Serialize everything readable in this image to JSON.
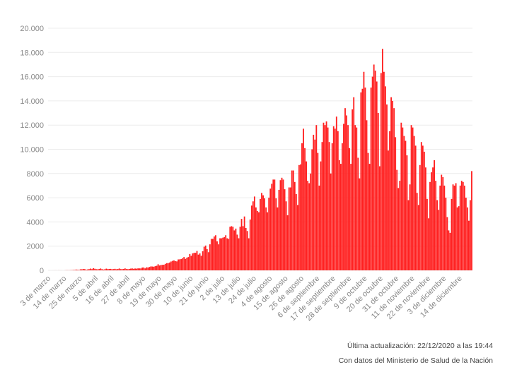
{
  "chart_data": {
    "type": "bar",
    "color": "#ff2020",
    "grid": true,
    "ylim": [
      0,
      20000
    ],
    "yticks": [
      0,
      2000,
      4000,
      6000,
      8000,
      {
        "value": 10000,
        "label": "10.000"
      },
      {
        "value": 12000,
        "label": "12.000"
      },
      {
        "value": 14000,
        "label": "14.000"
      },
      {
        "value": 16000,
        "label": "16.000"
      },
      {
        "value": 18000,
        "label": "18.000"
      },
      {
        "value": 20000,
        "label": "20.000"
      }
    ],
    "categories": [
      "3 de marzo",
      null,
      null,
      null,
      null,
      null,
      null,
      null,
      null,
      null,
      null,
      "14 de marzo",
      null,
      null,
      null,
      null,
      null,
      null,
      null,
      null,
      null,
      null,
      "25 de marzo",
      null,
      null,
      null,
      null,
      null,
      null,
      null,
      null,
      null,
      null,
      "5 de abril",
      null,
      null,
      null,
      null,
      null,
      null,
      null,
      null,
      null,
      null,
      "16 de abril",
      null,
      null,
      null,
      null,
      null,
      null,
      null,
      null,
      null,
      null,
      "27 de abril",
      null,
      null,
      null,
      null,
      null,
      null,
      null,
      null,
      null,
      null,
      "8 de mayo",
      null,
      null,
      null,
      null,
      null,
      null,
      null,
      null,
      null,
      null,
      "19 de mayo",
      null,
      null,
      null,
      null,
      null,
      null,
      null,
      null,
      null,
      null,
      "30 de mayo",
      null,
      null,
      null,
      null,
      null,
      null,
      null,
      null,
      null,
      null,
      "10 de junio",
      null,
      null,
      null,
      null,
      null,
      null,
      null,
      null,
      null,
      null,
      "21 de junio",
      null,
      null,
      null,
      null,
      null,
      null,
      null,
      null,
      null,
      null,
      "2 de julio",
      null,
      null,
      null,
      null,
      null,
      null,
      null,
      null,
      null,
      null,
      "13 de julio",
      null,
      null,
      null,
      null,
      null,
      null,
      null,
      null,
      null,
      null,
      "24 de julio",
      null,
      null,
      null,
      null,
      null,
      null,
      null,
      null,
      null,
      null,
      "4 de agosto",
      null,
      null,
      null,
      null,
      null,
      null,
      null,
      null,
      null,
      null,
      "15 de agosto",
      null,
      null,
      null,
      null,
      null,
      null,
      null,
      null,
      null,
      null,
      "26 de agosto",
      null,
      null,
      null,
      null,
      null,
      null,
      null,
      null,
      null,
      null,
      "6 de septiembre",
      null,
      null,
      null,
      null,
      null,
      null,
      null,
      null,
      null,
      null,
      "17 de septiembre",
      null,
      null,
      null,
      null,
      null,
      null,
      null,
      null,
      null,
      null,
      "28 de septiembre",
      null,
      null,
      null,
      null,
      null,
      null,
      null,
      null,
      null,
      null,
      "9 de octubre",
      null,
      null,
      null,
      null,
      null,
      null,
      null,
      null,
      null,
      null,
      "20 de octubre",
      null,
      null,
      null,
      null,
      null,
      null,
      null,
      null,
      null,
      null,
      "31 de octubre",
      null,
      null,
      null,
      null,
      null,
      null,
      null,
      null,
      null,
      null,
      "11 de noviembre",
      null,
      null,
      null,
      null,
      null,
      null,
      null,
      null,
      null,
      null,
      "22 de noviembre",
      null,
      null,
      null,
      null,
      null,
      null,
      null,
      null,
      null,
      null,
      "3 de diciembre",
      null,
      null,
      null,
      null,
      null,
      null,
      null,
      null,
      null,
      null,
      "14 de diciembre",
      null,
      null,
      null,
      null,
      null,
      null,
      null,
      null
    ],
    "values": [
      1,
      0,
      0,
      1,
      2,
      3,
      0,
      5,
      2,
      2,
      0,
      3,
      11,
      11,
      9,
      14,
      18,
      31,
      30,
      67,
      41,
      36,
      86,
      87,
      115,
      101,
      55,
      75,
      101,
      146,
      100,
      180,
      134,
      94,
      89,
      111,
      154,
      103,
      63,
      97,
      143,
      100,
      119,
      123,
      90,
      104,
      128,
      89,
      113,
      154,
      103,
      104,
      112,
      161,
      111,
      96,
      117,
      144,
      158,
      129,
      154,
      140,
      164,
      163,
      159,
      233,
      237,
      165,
      252,
      233,
      284,
      326,
      317,
      301,
      346,
      381,
      505,
      403,
      450,
      453,
      466,
      536,
      596,
      602,
      648,
      732,
      784,
      820,
      760,
      741,
      903,
      910,
      930,
      1000,
      1100,
      950,
      1050,
      1100,
      1350,
      1200,
      1400,
      1450,
      1450,
      1600,
      1300,
      1400,
      1200,
      1580,
      1950,
      2050,
      1750,
      1500,
      2150,
      2600,
      2600,
      2800,
      2900,
      2400,
      2150,
      2650,
      2650,
      2700,
      2750,
      2900,
      2650,
      2600,
      3600,
      3650,
      3600,
      3300,
      3450,
      2950,
      2650,
      3600,
      4250,
      3650,
      4450,
      3500,
      3250,
      2650,
      4200,
      5350,
      5700,
      6100,
      5200,
      4900,
      4800,
      5900,
      6400,
      6200,
      5950,
      5200,
      4800,
      6000,
      6750,
      7150,
      7500,
      7500,
      5950,
      5200,
      6650,
      7450,
      7650,
      7500,
      6700,
      5700,
      4550,
      6850,
      6850,
      8250,
      8250,
      7300,
      6300,
      5400,
      8700,
      8750,
      10500,
      11700,
      10100,
      9000,
      7400,
      7200,
      8000,
      10000,
      11200,
      10800,
      12000,
      9700,
      7000,
      9000,
      10600,
      12200,
      12000,
      12300,
      11800,
      10600,
      8000,
      10500,
      11900,
      11700,
      12700,
      11500,
      9100,
      8800,
      10500,
      12100,
      13400,
      12800,
      12000,
      10100,
      8800,
      13300,
      14300,
      12000,
      11800,
      9300,
      7600,
      14700,
      15000,
      16400,
      15100,
      12400,
      9700,
      8800,
      15100,
      16000,
      17000,
      16500,
      15600,
      13000,
      8600,
      16300,
      18300,
      16400,
      15200,
      13700,
      9900,
      11500,
      14300,
      14000,
      13400,
      11000,
      8300,
      6800,
      7400,
      12200,
      11800,
      11100,
      10700,
      9500,
      5800,
      7100,
      12000,
      11800,
      11100,
      10300,
      6400,
      5400,
      8700,
      10600,
      10300,
      9800,
      8500,
      5900,
      4300,
      7300,
      8100,
      8500,
      9100,
      7400,
      5800,
      5000,
      7000,
      7900,
      7700,
      7000,
      6000,
      4400,
      3300,
      3100,
      5900,
      7100,
      7000,
      7200,
      5200,
      5300,
      7000,
      7400,
      7300,
      7000,
      6000,
      5200,
      4100,
      5800,
      8200
    ],
    "footer": [
      "Última actualización: 22/12/2020 a las 19:44",
      "Con datos del Ministerio de Salud de la Nación"
    ]
  }
}
